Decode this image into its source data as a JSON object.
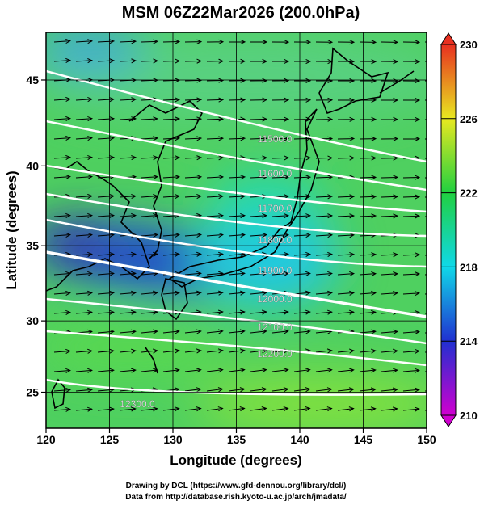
{
  "chart_data": {
    "type": "map",
    "title": "MSM 06Z22Mar2026 (200.0hPa)",
    "x_label": "Longitude (degrees)",
    "y_label": "Latitude  (degrees)",
    "xlim": [
      120,
      150
    ],
    "ylim": [
      22.4,
      47.6
    ],
    "xticks": [
      120,
      125,
      130,
      135,
      140,
      145,
      150
    ],
    "yticks": [
      25,
      30,
      35,
      40,
      45
    ],
    "colorbar": {
      "lim": [
        210,
        230
      ],
      "ticks": [
        210,
        214,
        218,
        222,
        226,
        230
      ],
      "colors": [
        "#d000d0",
        "#2030d0",
        "#10d8e8",
        "#20d040",
        "#e8e820",
        "#e83020"
      ]
    },
    "contours": [
      {
        "value": 11500,
        "label": "11500.0"
      },
      {
        "value": 11600,
        "label": "11600.0"
      },
      {
        "value": 11700,
        "label": "11700.0"
      },
      {
        "value": 11800,
        "label": "11800.0"
      },
      {
        "value": 11900,
        "label": "11900.0"
      },
      {
        "value": 12000,
        "label": "12000.0"
      },
      {
        "value": 12100,
        "label": "12100.0"
      },
      {
        "value": 12200,
        "label": "12200.0"
      },
      {
        "value": 12300,
        "label": "12300.0"
      }
    ],
    "credits": [
      "Drawing by DCL (https://www.gfd-dennou.org/library/dcl/)",
      "Data from http://database.rish.kyoto-u.ac.jp/arch/jmadata/"
    ]
  }
}
